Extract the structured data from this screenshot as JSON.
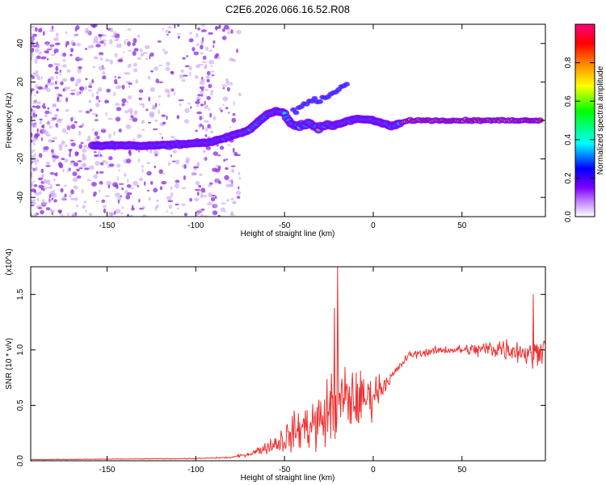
{
  "title": "C2E6.2026.066.16.52.R08",
  "chart_data": [
    {
      "type": "heatmap",
      "name": "spectrogram",
      "xlabel": "Height of straight line (km)",
      "ylabel": "Frequency (Hz)",
      "xlim": [
        -193,
        97
      ],
      "ylim": [
        -50,
        50
      ],
      "xticks": [
        -150,
        -100,
        -50,
        0,
        50
      ],
      "yticks": [
        -40,
        -20,
        0,
        20,
        40
      ],
      "colorbar": {
        "label": "Normalized spectral amplitude",
        "range": [
          0,
          1
        ],
        "ticks": [
          "0.0",
          "0.2",
          "0.4",
          "0.6",
          "0.8"
        ],
        "tick_values": [
          0,
          0.2,
          0.4,
          0.6,
          0.8
        ],
        "colors": [
          "#ffffff",
          "#8000ff",
          "#0000ff",
          "#00ffff",
          "#00ff00",
          "#ffff00",
          "#ff8000",
          "#ff0000",
          "#ff0080"
        ]
      },
      "ridge": {
        "x": [
          -155,
          -140,
          -120,
          -100,
          -90,
          -80,
          -70,
          -60,
          -55,
          -50,
          -45,
          -40,
          -35,
          -30,
          -20,
          -10,
          0,
          10,
          20,
          50,
          80,
          95
        ],
        "freq": [
          -13,
          -13,
          -13,
          -12,
          -11,
          -8,
          -5,
          3,
          5,
          4,
          -3,
          -3,
          -2,
          -4,
          -2,
          1,
          0,
          -3,
          0,
          0,
          0,
          0
        ]
      },
      "branch": {
        "x": [
          -45,
          -40,
          -35,
          -30,
          -25,
          -20,
          -15
        ],
        "freq": [
          5,
          8,
          10,
          11,
          13,
          16,
          20
        ]
      }
    },
    {
      "type": "line",
      "name": "snr",
      "xlabel": "Height of straight line (km)",
      "ylabel": "SNR (10 * v/v)",
      "scale_label": "(x10^4)",
      "xlim": [
        -193,
        97
      ],
      "ylim": [
        0,
        1.75
      ],
      "xticks": [
        -150,
        -100,
        -50,
        0,
        50
      ],
      "yticks": [
        0.0,
        0.5,
        1.0,
        1.5
      ],
      "color": "#f03030",
      "envelope": {
        "x": [
          -193,
          -100,
          -80,
          -70,
          -60,
          -50,
          -40,
          -30,
          -25,
          -20,
          -15,
          -10,
          -5,
          0,
          10,
          20,
          30,
          40,
          50,
          60,
          70,
          80,
          90,
          97
        ],
        "mean": [
          0.01,
          0.02,
          0.03,
          0.06,
          0.12,
          0.2,
          0.3,
          0.35,
          0.45,
          0.5,
          0.55,
          0.55,
          0.55,
          0.6,
          0.75,
          0.95,
          0.98,
          1.0,
          1.0,
          1.0,
          1.02,
          1.0,
          0.95,
          1.05
        ],
        "amplitude": [
          0.003,
          0.004,
          0.008,
          0.02,
          0.06,
          0.15,
          0.22,
          0.3,
          0.35,
          0.45,
          0.35,
          0.3,
          0.25,
          0.2,
          0.05,
          0.04,
          0.04,
          0.04,
          0.05,
          0.08,
          0.12,
          0.12,
          0.12,
          0.12
        ]
      },
      "peaks": [
        {
          "x": -20,
          "y": 1.75
        },
        {
          "x": -22,
          "y": 1.38
        },
        {
          "x": 90,
          "y": 1.5
        }
      ]
    }
  ]
}
